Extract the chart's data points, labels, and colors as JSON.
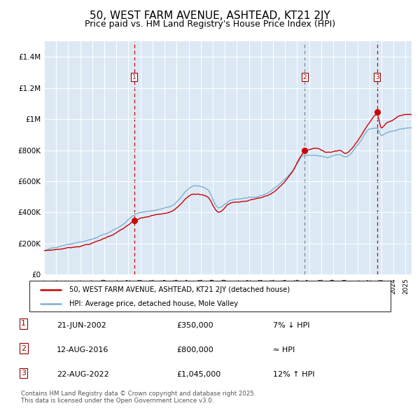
{
  "title": "50, WEST FARM AVENUE, ASHTEAD, KT21 2JY",
  "subtitle": "Price paid vs. HM Land Registry's House Price Index (HPI)",
  "title_fontsize": 11,
  "subtitle_fontsize": 9,
  "background_color": "#dce9f5",
  "red_color": "#cc0000",
  "blue_color": "#7ab0d4",
  "ylim": [
    0,
    1500000
  ],
  "yticks": [
    0,
    200000,
    400000,
    600000,
    800000,
    1000000,
    1200000,
    1400000
  ],
  "ytick_labels": [
    "£0",
    "£200K",
    "£400K",
    "£600K",
    "£800K",
    "£1M",
    "£1.2M",
    "£1.4M"
  ],
  "legend_label_red": "50, WEST FARM AVENUE, ASHTEAD, KT21 2JY (detached house)",
  "legend_label_blue": "HPI: Average price, detached house, Mole Valley",
  "transaction1_date": "21-JUN-2002",
  "transaction1_price": "£350,000",
  "transaction1_hpi": "7% ↓ HPI",
  "transaction1_x": 2002.47,
  "transaction1_y": 350000,
  "transaction2_date": "12-AUG-2016",
  "transaction2_price": "£800,000",
  "transaction2_hpi": "≈ HPI",
  "transaction2_x": 2016.62,
  "transaction2_y": 800000,
  "transaction3_date": "22-AUG-2022",
  "transaction3_price": "£1,045,000",
  "transaction3_hpi": "12% ↑ HPI",
  "transaction3_x": 2022.64,
  "transaction3_y": 1045000,
  "footer": "Contains HM Land Registry data © Crown copyright and database right 2025.\nThis data is licensed under the Open Government Licence v3.0.",
  "xmin": 1995.0,
  "xmax": 2025.5
}
